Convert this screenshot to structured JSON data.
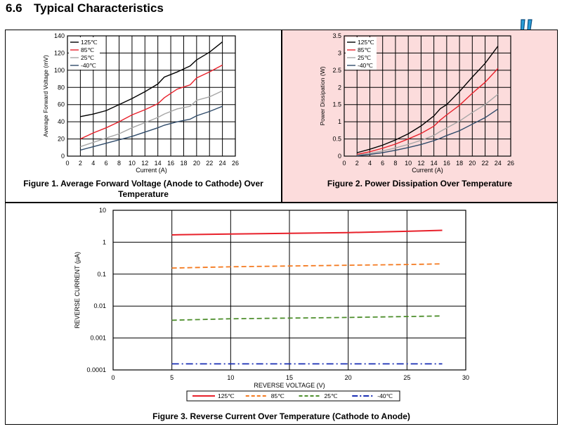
{
  "heading": {
    "number": "6.6",
    "title": "Typical Characteristics"
  },
  "colors": {
    "c125": "#000000",
    "c85": "#e8212b",
    "c25": "#a6a6a6",
    "cm40": "#2f4b6a",
    "f3_125": "#e8212b",
    "f3_85": "#f47a20",
    "f3_25": "#4e8f2d",
    "f3_m40": "#1a2fb4",
    "panel2_bg": "#fcdcdc",
    "alert": "#2a9fd8"
  },
  "icons": {
    "alert": "double-exclamation-icon"
  },
  "chart_data": [
    {
      "type": "line",
      "caption": "Figure 1. Average Forward Voltage (Anode to Cathode) Over Temperature",
      "xlabel": "Current (A)",
      "ylabel": "Average Forward Voltage (mV)",
      "xlim": [
        0,
        26
      ],
      "ylim": [
        0,
        140
      ],
      "xticks": [
        "0",
        "2",
        "4",
        "6",
        "8",
        "10",
        "12",
        "14",
        "16",
        "18",
        "20",
        "22",
        "24",
        "26"
      ],
      "yticks": [
        "0",
        "20",
        "40",
        "60",
        "80",
        "100",
        "120",
        "140"
      ],
      "grid": true,
      "legend_position": "top-left",
      "series": [
        {
          "name": "125℃",
          "color": "#000000",
          "x": [
            2,
            4,
            6,
            8,
            10,
            12,
            14,
            15,
            17,
            19,
            20,
            22,
            24
          ],
          "y": [
            46,
            49,
            53,
            60,
            67,
            75,
            84,
            92,
            98,
            105,
            112,
            121,
            133
          ]
        },
        {
          "name": "85℃",
          "color": "#e8212b",
          "x": [
            2,
            4,
            6,
            8,
            10,
            12,
            14,
            15,
            17,
            19,
            20,
            22,
            24
          ],
          "y": [
            20,
            27,
            33,
            40,
            48,
            54,
            61,
            68,
            78,
            83,
            91,
            98,
            106
          ]
        },
        {
          "name": "25℃",
          "color": "#a6a6a6",
          "x": [
            2,
            4,
            6,
            8,
            10,
            12,
            14,
            15,
            17,
            19,
            20,
            22,
            24
          ],
          "y": [
            11,
            16,
            21,
            26,
            33,
            39,
            45,
            49,
            55,
            58,
            65,
            69,
            76
          ]
        },
        {
          "name": "-40℃",
          "color": "#2f4b6a",
          "x": [
            2,
            4,
            6,
            8,
            10,
            12,
            14,
            15,
            17,
            19,
            20,
            22,
            24
          ],
          "y": [
            7,
            11,
            15,
            19,
            23,
            28,
            33,
            36,
            40,
            43,
            47,
            52,
            58
          ]
        }
      ]
    },
    {
      "type": "line",
      "caption": "Figure 2. Power Dissipation Over Temperature",
      "xlabel": "Current (A)",
      "ylabel": "Power Dissipation (W)",
      "xlim": [
        0,
        26
      ],
      "ylim": [
        0,
        3.5
      ],
      "xticks": [
        "0",
        "2",
        "4",
        "6",
        "8",
        "10",
        "12",
        "14",
        "16",
        "18",
        "20",
        "22",
        "24",
        "26"
      ],
      "yticks": [
        "0",
        "0.5",
        "1",
        "1.5",
        "2",
        "2.5",
        "3",
        "3.5"
      ],
      "grid": true,
      "legend_position": "top-left",
      "series": [
        {
          "name": "125℃",
          "color": "#000000",
          "x": [
            2,
            4,
            6,
            8,
            10,
            12,
            14,
            15,
            16,
            18,
            20,
            22,
            24
          ],
          "y": [
            0.1,
            0.2,
            0.32,
            0.47,
            0.65,
            0.88,
            1.17,
            1.38,
            1.5,
            1.88,
            2.3,
            2.7,
            3.2
          ]
        },
        {
          "name": "85℃",
          "color": "#e8212b",
          "x": [
            2,
            4,
            6,
            8,
            10,
            12,
            14,
            15,
            16,
            18,
            20,
            22,
            24
          ],
          "y": [
            0.05,
            0.13,
            0.23,
            0.35,
            0.5,
            0.66,
            0.87,
            1.05,
            1.2,
            1.48,
            1.83,
            2.15,
            2.55
          ]
        },
        {
          "name": "25℃",
          "color": "#a6a6a6",
          "x": [
            2,
            4,
            6,
            8,
            10,
            12,
            14,
            15,
            16,
            18,
            20,
            22,
            24
          ],
          "y": [
            0.03,
            0.08,
            0.15,
            0.24,
            0.34,
            0.46,
            0.6,
            0.72,
            0.82,
            1.02,
            1.27,
            1.5,
            1.8
          ]
        },
        {
          "name": "-40℃",
          "color": "#2f4b6a",
          "x": [
            2,
            4,
            6,
            8,
            10,
            12,
            14,
            15,
            16,
            18,
            20,
            22,
            24
          ],
          "y": [
            0.01,
            0.05,
            0.1,
            0.17,
            0.25,
            0.34,
            0.45,
            0.52,
            0.6,
            0.74,
            0.93,
            1.12,
            1.37
          ]
        }
      ]
    },
    {
      "type": "line",
      "caption": "Figure 3. Reverse Current Over Temperature (Cathode to Anode)",
      "xlabel": "REVERSE VOLTAGE (V)",
      "ylabel": "REVERSE CURRENT (µA)",
      "xlim": [
        0,
        30
      ],
      "ylim": [
        0.0001,
        10
      ],
      "yscale": "log",
      "xticks": [
        "0",
        "5",
        "10",
        "15",
        "20",
        "25",
        "30"
      ],
      "yticks": [
        "0.0001",
        "0.001",
        "0.01",
        "0.1",
        "1",
        "10"
      ],
      "grid": true,
      "legend_position": "bottom",
      "series": [
        {
          "name": "125℃",
          "color": "#e8212b",
          "dash": "solid",
          "x": [
            5,
            10,
            15,
            20,
            25,
            28
          ],
          "y": [
            1.7,
            1.8,
            1.9,
            2.0,
            2.2,
            2.35
          ]
        },
        {
          "name": "85℃",
          "color": "#f47a20",
          "dash": "dash",
          "x": [
            5,
            10,
            15,
            20,
            25,
            28
          ],
          "y": [
            0.155,
            0.17,
            0.18,
            0.19,
            0.2,
            0.21
          ]
        },
        {
          "name": "25℃",
          "color": "#4e8f2d",
          "dash": "dash",
          "x": [
            5,
            10,
            15,
            20,
            25,
            28
          ],
          "y": [
            0.0036,
            0.004,
            0.0042,
            0.0044,
            0.0047,
            0.0049
          ]
        },
        {
          "name": "-40℃",
          "color": "#1a2fb4",
          "dash": "dashdot",
          "x": [
            5,
            10,
            15,
            20,
            25,
            28
          ],
          "y": [
            0.000155,
            0.000155,
            0.000155,
            0.000155,
            0.000155,
            0.000155
          ]
        }
      ]
    }
  ]
}
